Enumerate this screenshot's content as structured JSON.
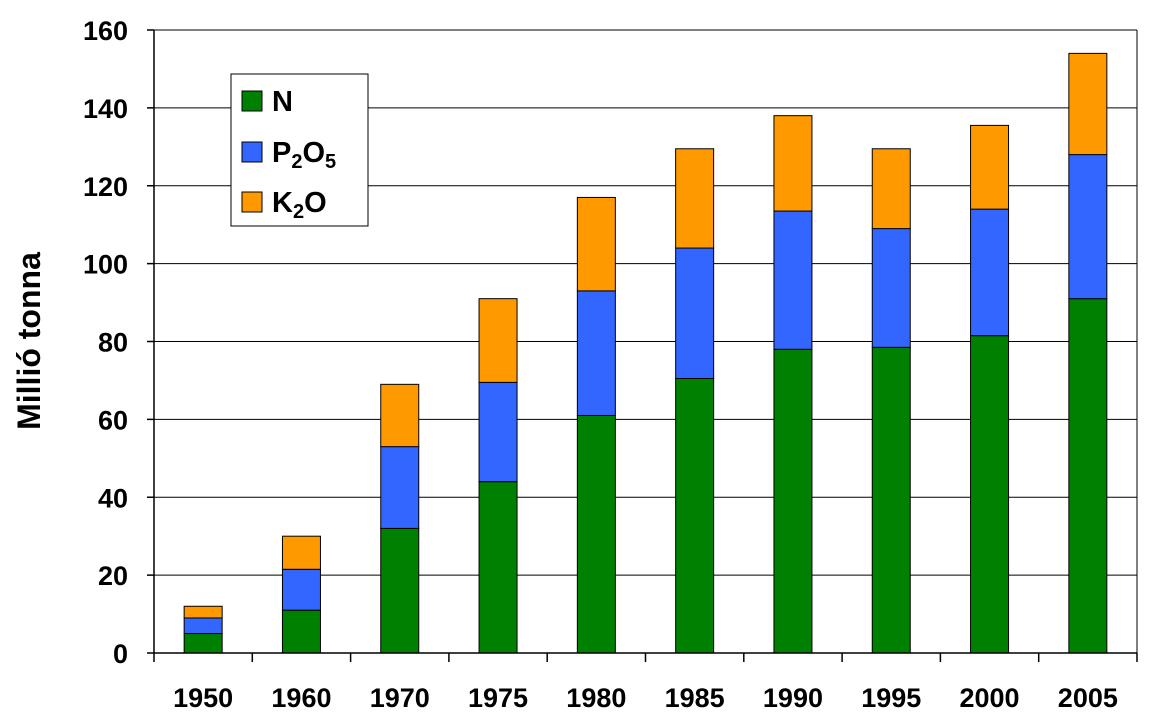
{
  "chart_data": {
    "type": "bar",
    "stacked": true,
    "title": "",
    "xlabel": "",
    "ylabel": "Millió tonna",
    "ylim": [
      0,
      160
    ],
    "yticks": [
      0,
      20,
      40,
      60,
      80,
      100,
      120,
      140,
      160
    ],
    "grid": true,
    "legend_position": "top-left",
    "categories": [
      "1950",
      "1960",
      "1970",
      "1975",
      "1980",
      "1985",
      "1990",
      "1995",
      "2000",
      "2005"
    ],
    "series": [
      {
        "name": "N",
        "color": "#008000",
        "values": [
          5,
          11,
          32,
          44,
          61,
          70.5,
          78,
          78.5,
          81.5,
          91
        ]
      },
      {
        "name": "P2O5",
        "color": "#3366FF",
        "values": [
          4,
          10.5,
          21,
          25.5,
          32,
          33.5,
          35.5,
          30.5,
          32.5,
          37
        ]
      },
      {
        "name": "K2O",
        "color": "#FF9900",
        "values": [
          3,
          8.5,
          16,
          21.5,
          24,
          25.5,
          24.5,
          20.5,
          21.5,
          26
        ]
      }
    ],
    "legend": [
      {
        "base": "N",
        "sub": "",
        "tail": ""
      },
      {
        "base": "P",
        "sub": "2",
        "tail": "O",
        "sub2": "5"
      },
      {
        "base": "K",
        "sub": "2",
        "tail": "O",
        "sub2": ""
      }
    ]
  }
}
